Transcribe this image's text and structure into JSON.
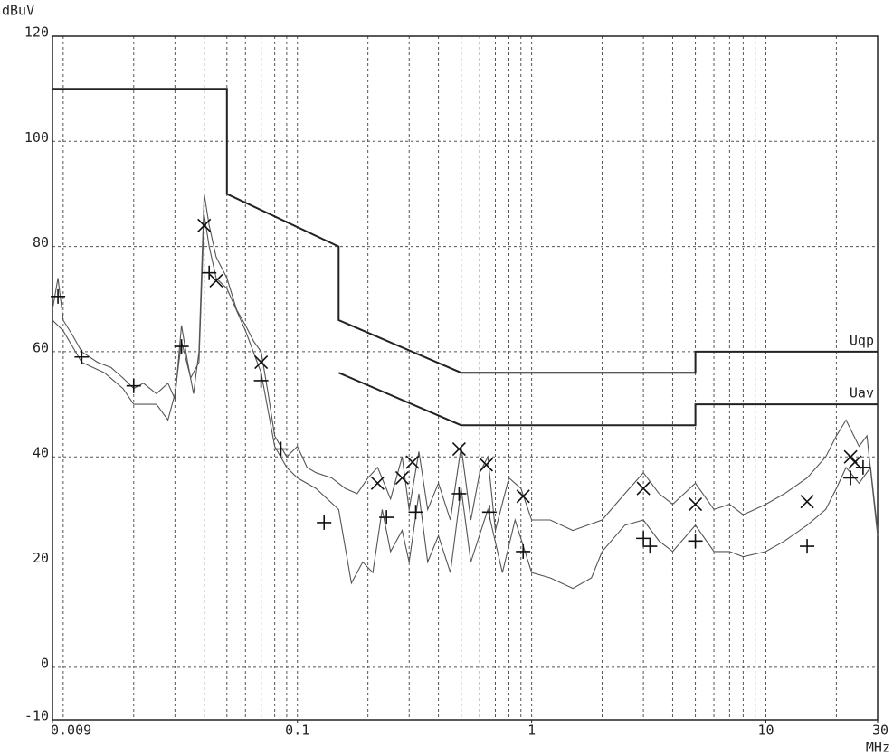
{
  "chart_data": {
    "type": "line",
    "xlabel": "MHz",
    "ylabel": "dBuV",
    "xlog": true,
    "xlim": [
      0.009,
      30
    ],
    "xticks": [
      0.009,
      0.1,
      1,
      10,
      30
    ],
    "xgrid": [
      0.01,
      0.02,
      0.03,
      0.04,
      0.05,
      0.06,
      0.07,
      0.08,
      0.09,
      0.1,
      0.2,
      0.3,
      0.4,
      0.5,
      0.6,
      0.7,
      0.8,
      0.9,
      1,
      2,
      3,
      4,
      5,
      6,
      7,
      8,
      9,
      10,
      20,
      30
    ],
    "ylim": [
      -10,
      120
    ],
    "yticks": [
      -10,
      0,
      20,
      40,
      60,
      80,
      100,
      120
    ],
    "grid": true,
    "series": [
      {
        "name": "Uqp",
        "color": "#222222",
        "style": "limit",
        "x": [
          0.009,
          0.05,
          0.05,
          0.15,
          0.15,
          0.5,
          5,
          5,
          30
        ],
        "values": [
          110,
          110,
          90,
          80,
          66,
          56,
          56,
          60,
          60
        ]
      },
      {
        "name": "Uav",
        "color": "#222222",
        "style": "limit",
        "x": [
          0.15,
          0.5,
          5,
          5,
          30
        ],
        "values": [
          56,
          46,
          46,
          50,
          50
        ]
      },
      {
        "color": "#555555",
        "style": "trace",
        "x": [
          0.009,
          0.0095,
          0.01,
          0.011,
          0.012,
          0.014,
          0.016,
          0.018,
          0.02,
          0.022,
          0.025,
          0.028,
          0.03,
          0.032,
          0.034,
          0.036,
          0.038,
          0.04,
          0.042,
          0.045,
          0.05,
          0.055,
          0.06,
          0.065,
          0.07,
          0.075,
          0.08,
          0.09,
          0.1,
          0.11,
          0.12,
          0.14,
          0.16,
          0.18,
          0.2,
          0.22,
          0.25,
          0.28,
          0.3,
          0.33,
          0.36,
          0.4,
          0.45,
          0.5,
          0.55,
          0.6,
          0.65,
          0.7,
          0.8,
          0.9,
          1,
          1.2,
          1.5,
          2,
          2.5,
          3,
          3.5,
          4,
          5,
          6,
          7,
          8,
          10,
          12,
          15,
          18,
          20,
          22,
          25,
          27,
          30
        ],
        "values": [
          68,
          74,
          66,
          63,
          60,
          58,
          57,
          55,
          53,
          54,
          52,
          54,
          51,
          65,
          58,
          52,
          60,
          90,
          84,
          78,
          74,
          68,
          65,
          62,
          60,
          52,
          44,
          40,
          42,
          38,
          37,
          36,
          34,
          33,
          36,
          38,
          32,
          40,
          30,
          41,
          30,
          35,
          28,
          42,
          28,
          37,
          40,
          26,
          36,
          34,
          28,
          28,
          26,
          28,
          33,
          37,
          33,
          31,
          35,
          30,
          31,
          29,
          31,
          33,
          36,
          40,
          44,
          47,
          42,
          44,
          25
        ]
      },
      {
        "color": "#555555",
        "style": "trace",
        "x": [
          0.009,
          0.01,
          0.012,
          0.015,
          0.018,
          0.02,
          0.025,
          0.028,
          0.03,
          0.032,
          0.035,
          0.038,
          0.04,
          0.042,
          0.045,
          0.05,
          0.06,
          0.07,
          0.08,
          0.09,
          0.1,
          0.12,
          0.15,
          0.17,
          0.19,
          0.21,
          0.23,
          0.25,
          0.28,
          0.3,
          0.33,
          0.36,
          0.4,
          0.45,
          0.5,
          0.55,
          0.65,
          0.75,
          0.85,
          1,
          1.2,
          1.5,
          1.8,
          2,
          2.5,
          3,
          3.5,
          4,
          5,
          6,
          7,
          8,
          10,
          12,
          15,
          18,
          20,
          22,
          25,
          28,
          30
        ],
        "values": [
          66,
          64,
          58,
          56,
          53,
          50,
          50,
          47,
          52,
          62,
          55,
          58,
          86,
          80,
          74,
          72,
          64,
          56,
          42,
          38,
          36,
          34,
          30,
          16,
          20,
          18,
          30,
          22,
          26,
          20,
          33,
          20,
          25,
          18,
          34,
          20,
          30,
          18,
          28,
          18,
          17,
          15,
          17,
          22,
          27,
          28,
          24,
          22,
          27,
          22,
          22,
          21,
          22,
          24,
          27,
          30,
          34,
          38,
          35,
          38,
          26
        ]
      },
      {
        "color": "#111111",
        "style": "marker",
        "marker": "x",
        "x": [
          0.04,
          0.045,
          0.07,
          0.22,
          0.28,
          0.31,
          0.49,
          0.64,
          0.92,
          3,
          5,
          15,
          23,
          24
        ],
        "values": [
          84,
          73.5,
          58,
          35,
          36,
          39,
          41.5,
          38.5,
          32.5,
          34,
          31,
          31.5,
          40,
          39
        ]
      },
      {
        "color": "#111111",
        "style": "marker",
        "marker": "+",
        "x": [
          0.0095,
          0.012,
          0.02,
          0.032,
          0.042,
          0.07,
          0.085,
          0.13,
          0.24,
          0.32,
          0.49,
          0.66,
          0.92,
          3,
          3.2,
          5,
          15,
          23,
          26
        ],
        "values": [
          70.5,
          59,
          53.5,
          61,
          75,
          54.5,
          41.5,
          27.5,
          28.5,
          29.5,
          33,
          29.5,
          22,
          24.5,
          23,
          24,
          23,
          36,
          38
        ]
      }
    ]
  }
}
